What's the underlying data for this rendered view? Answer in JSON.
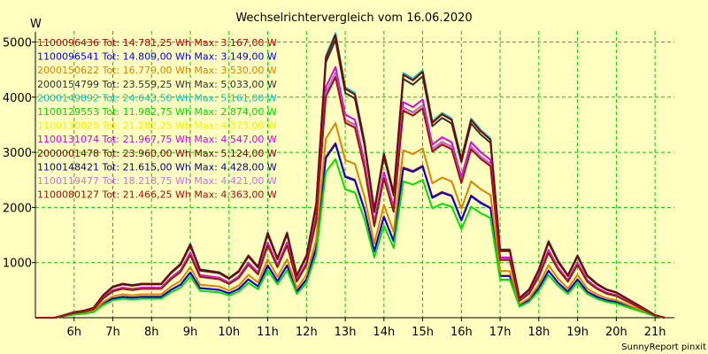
{
  "chart_data": {
    "type": "line",
    "title": "Wechselrichtervergleich vom 16.06.2020",
    "ylabel": "W",
    "footer": "SunnyReport pinxit",
    "ylim": [
      0,
      5200
    ],
    "yticks": [
      1000,
      2000,
      3000,
      4000,
      5000
    ],
    "xlim": [
      5.0,
      21.5
    ],
    "xticks": [
      6,
      7,
      8,
      9,
      10,
      11,
      12,
      13,
      14,
      15,
      16,
      17,
      18,
      19,
      20,
      21
    ],
    "xtick_labels": [
      "6h",
      "7h",
      "8h",
      "9h",
      "10h",
      "11h",
      "12h",
      "13h",
      "14h",
      "15h",
      "16h",
      "17h",
      "18h",
      "19h",
      "20h",
      "21h"
    ],
    "grid": true,
    "legend_position": "top-left",
    "x": [
      5.0,
      5.5,
      5.75,
      6.0,
      6.25,
      6.5,
      6.75,
      7.0,
      7.25,
      7.5,
      7.75,
      8.0,
      8.25,
      8.5,
      8.75,
      9.0,
      9.25,
      9.5,
      9.75,
      10.0,
      10.25,
      10.5,
      10.75,
      11.0,
      11.25,
      11.5,
      11.75,
      12.0,
      12.25,
      12.5,
      12.75,
      13.0,
      13.25,
      13.5,
      13.75,
      14.0,
      14.25,
      14.5,
      14.75,
      15.0,
      15.25,
      15.5,
      15.75,
      16.0,
      16.25,
      16.5,
      16.75,
      17.0,
      17.25,
      17.5,
      17.75,
      18.0,
      18.25,
      18.5,
      18.75,
      19.0,
      19.25,
      19.5,
      19.75,
      20.0,
      20.25,
      20.5,
      20.75,
      21.0,
      21.25
    ],
    "base": [
      0,
      0,
      0.01,
      0.02,
      0.025,
      0.035,
      0.08,
      0.11,
      0.12,
      0.115,
      0.12,
      0.12,
      0.12,
      0.16,
      0.19,
      0.26,
      0.17,
      0.165,
      0.16,
      0.14,
      0.165,
      0.22,
      0.18,
      0.3,
      0.21,
      0.3,
      0.15,
      0.22,
      0.4,
      0.92,
      1.0,
      0.81,
      0.79,
      0.62,
      0.38,
      0.58,
      0.44,
      0.86,
      0.84,
      0.87,
      0.69,
      0.72,
      0.7,
      0.56,
      0.7,
      0.66,
      0.63,
      0.24,
      0.24,
      0.07,
      0.1,
      0.17,
      0.27,
      0.2,
      0.15,
      0.22,
      0.15,
      0.12,
      0.1,
      0.09,
      0.07,
      0.05,
      0.03,
      0.01,
      0
    ],
    "series": [
      {
        "name": "1100096436 Tot: 14.781,25 Wh Max: 3.167,00 W",
        "color": "#c00000",
        "max": 3167
      },
      {
        "name": "1100096541 Tot: 14.809,00 Wh Max: 3.149,00 W",
        "color": "#0000e0",
        "max": 3149
      },
      {
        "name": "2000150622 Tot: 16.779,00 Wh Max: 3.530,00 W",
        "color": "#e08000",
        "max": 3530
      },
      {
        "name": "2000154799 Tot: 23.559,25 Wh Max: 5.033,00 W",
        "color": "#303030",
        "max": 5033
      },
      {
        "name": "2000149892 Tot: 24.643,50 Wh Max: 5.161,00 W",
        "color": "#00c8c8",
        "max": 5161
      },
      {
        "name": "1100129553 Tot: 11.982,75 Wh Max: 2.874,00 W",
        "color": "#00e000",
        "max": 2874
      },
      {
        "name": "1100130025 Tot: 21.282,25 Wh Max: 4.373,00 W",
        "color": "#f0f000",
        "max": 4373
      },
      {
        "name": "1100131074 Tot: 21.967,75 Wh Max: 4.547,00 W",
        "color": "#e000e0",
        "max": 4547
      },
      {
        "name": "2000001478 Tot: 23.960,00 Wh Max: 5.124,00 W",
        "color": "#800000",
        "max": 5124
      },
      {
        "name": "1100148421 Tot: 21.615,00 Wh Max: 4.428,00 W",
        "color": "#000080",
        "max": 4428
      },
      {
        "name": "1100119477 Tot: 18.218,75 Wh Max: 4.421,00 W",
        "color": "#d070e0",
        "max": 4421
      },
      {
        "name": "1100080127 Tot: 21.466,25 Wh Max: 4.363,00 W",
        "color": "#a01010",
        "max": 4363
      }
    ]
  }
}
